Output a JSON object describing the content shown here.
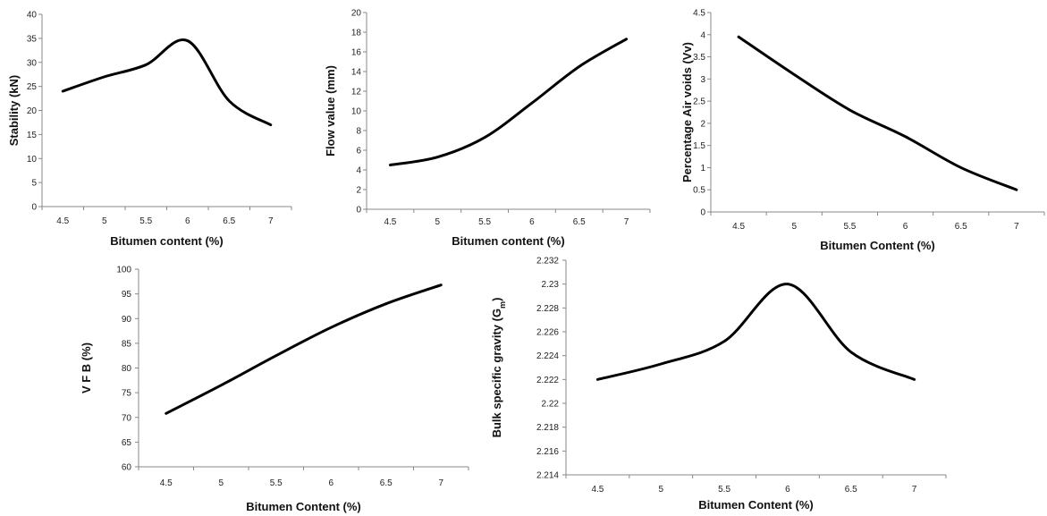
{
  "chart_data": [
    {
      "type": "line",
      "xlabel": "Bitumen content (%)",
      "ylabel": "Stability (kN)",
      "xlim": [
        4.5,
        7
      ],
      "xticks": [
        "4.5",
        "5",
        "5.5",
        "6",
        "6.5",
        "7"
      ],
      "ylim": [
        0,
        40
      ],
      "yticks": [
        "0",
        "5",
        "10",
        "15",
        "20",
        "25",
        "30",
        "35",
        "40"
      ],
      "series": [
        {
          "color": "#000000",
          "x": [
            4.5,
            5,
            5.5,
            6,
            6.5,
            7
          ],
          "y": [
            24,
            27,
            29.5,
            34.5,
            22,
            17
          ]
        }
      ]
    },
    {
      "type": "line",
      "xlabel": "Bitumen content (%)",
      "ylabel": "Flow value (mm)",
      "xlim": [
        4.5,
        7
      ],
      "xticks": [
        "4.5",
        "5",
        "5.5",
        "6",
        "6.5",
        "7"
      ],
      "ylim": [
        0,
        20
      ],
      "yticks": [
        "0",
        "2",
        "4",
        "6",
        "8",
        "10",
        "12",
        "14",
        "16",
        "18",
        "20"
      ],
      "series": [
        {
          "color": "#000000",
          "x": [
            4.5,
            5,
            5.5,
            6,
            6.5,
            7
          ],
          "y": [
            4.5,
            5.3,
            7.3,
            10.8,
            14.5,
            17.3
          ]
        }
      ]
    },
    {
      "type": "line",
      "xlabel": "Bitumen Content (%)",
      "ylabel": "Percentage  Air voids (Vv)",
      "xlim": [
        4.5,
        7
      ],
      "xticks": [
        "4.5",
        "5",
        "5.5",
        "6",
        "6.5",
        "7"
      ],
      "ylim": [
        0,
        4.5
      ],
      "yticks": [
        "0",
        "0.5",
        "1",
        "1.5",
        "2",
        "2.5",
        "3",
        "3.5",
        "4",
        "4.5"
      ],
      "series": [
        {
          "color": "#000000",
          "x": [
            4.5,
            5,
            5.5,
            6,
            6.5,
            7
          ],
          "y": [
            3.95,
            3.1,
            2.3,
            1.7,
            1.0,
            0.5
          ]
        }
      ]
    },
    {
      "type": "line",
      "xlabel": "Bitumen Content (%)",
      "ylabel": "V F B (%)",
      "xlim": [
        4.5,
        7
      ],
      "xticks": [
        "4.5",
        "5",
        "5.5",
        "6",
        "6.5",
        "7"
      ],
      "ylim": [
        60,
        100
      ],
      "yticks": [
        "60",
        "65",
        "70",
        "75",
        "80",
        "85",
        "90",
        "95",
        "100"
      ],
      "series": [
        {
          "color": "#000000",
          "x": [
            4.5,
            5,
            5.5,
            6,
            6.5,
            7
          ],
          "y": [
            70.8,
            76.5,
            82.5,
            88.2,
            93,
            96.8
          ]
        }
      ]
    },
    {
      "type": "line",
      "xlabel": "Bitumen Content (%)",
      "ylabel": "Bulk specific gravity (G",
      "ylabel_sub": "m",
      "ylabel_end": ")",
      "xlim": [
        4.5,
        7
      ],
      "xticks": [
        "4.5",
        "5",
        "5.5",
        "6",
        "6.5",
        "7"
      ],
      "ylim": [
        2.214,
        2.232
      ],
      "yticks": [
        "2.214",
        "2.216",
        "2.218",
        "2.22",
        "2.222",
        "2.224",
        "2.226",
        "2.228",
        "2.23",
        "2.232"
      ],
      "series": [
        {
          "color": "#000000",
          "x": [
            4.5,
            5,
            5.5,
            6,
            6.5,
            7
          ],
          "y": [
            2.222,
            2.2233,
            2.2252,
            2.23,
            2.2243,
            2.222
          ]
        }
      ]
    }
  ]
}
